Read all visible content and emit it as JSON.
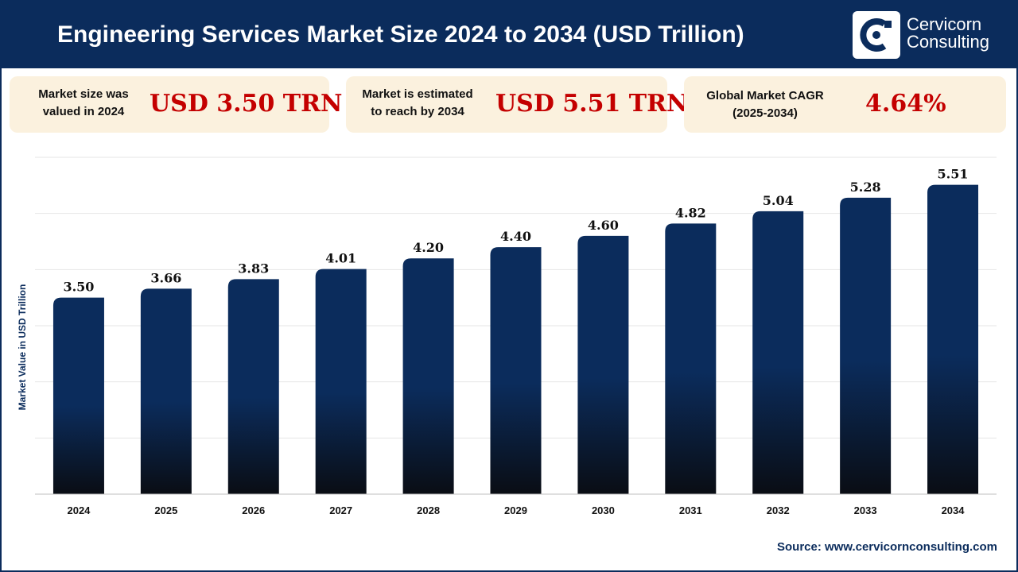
{
  "header": {
    "title": "Engineering Services Market Size 2024 to 2034 (USD Trillion)",
    "brand_line1": "Cervicorn",
    "brand_line2": "Consulting"
  },
  "stats": [
    {
      "label_line1": "Market size was",
      "label_line2": "valued in 2024",
      "value": "USD 3.50 TRN"
    },
    {
      "label_line1": "Market is estimated",
      "label_line2": "to reach by 2034",
      "value": "USD 5.51 TRN"
    },
    {
      "label_line1": "Global Market CAGR",
      "label_line2": "(2025-2034)",
      "value": "4.64%"
    }
  ],
  "source": "Source: www.cervicornconsulting.com",
  "colors": {
    "header_bg": "#0b2c5c",
    "card_bg": "#fbf1de",
    "accent_red": "#c40000",
    "bar_top": "#0b2c5c",
    "bar_bottom": "#0a0d14"
  },
  "chart_data": {
    "type": "bar",
    "title": "Engineering Services Market Size 2024 to 2034 (USD Trillion)",
    "xlabel": "",
    "ylabel": "Market Value in USD Trillion",
    "categories": [
      "2024",
      "2025",
      "2026",
      "2027",
      "2028",
      "2029",
      "2030",
      "2031",
      "2032",
      "2033",
      "2034"
    ],
    "values": [
      3.5,
      3.66,
      3.83,
      4.01,
      4.2,
      4.4,
      4.6,
      4.82,
      5.04,
      5.28,
      5.51
    ],
    "value_labels": [
      "3.50",
      "3.66",
      "3.83",
      "4.01",
      "4.20",
      "4.40",
      "4.60",
      "4.82",
      "5.04",
      "5.28",
      "5.51"
    ],
    "ylim": [
      0,
      6
    ],
    "grid": true,
    "legend": "none"
  }
}
